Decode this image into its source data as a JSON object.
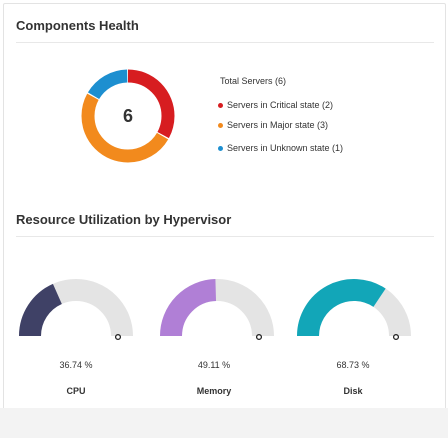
{
  "colors": {
    "critical": "#d71d20",
    "major": "#f28a1d",
    "unknown": "#1d8fd0",
    "gauge_cpu": "#3f4166",
    "gauge_memory": "#b07fd6",
    "gauge_disk": "#12a6b8",
    "gauge_track": "#e4e4e4"
  },
  "components_health": {
    "title": "Components Health",
    "total": "6",
    "legend_title": "Total Servers (6)",
    "legend_items": [
      {
        "label": "Servers in Critical state (2)",
        "value": 2,
        "color": "#d71d20"
      },
      {
        "label": "Servers in Major state (3)",
        "value": 3,
        "color": "#f28a1d"
      },
      {
        "label": "Servers in Unknown state (1)",
        "value": 1,
        "color": "#1d8fd0"
      }
    ]
  },
  "resource_utilization": {
    "title": "Resource Utilization by Hypervisor",
    "gauges": [
      {
        "name": "CPU",
        "percent_label": "36.74 %",
        "value": 36.74,
        "color": "#3f4166"
      },
      {
        "name": "Memory",
        "percent_label": "49.11 %",
        "value": 49.11,
        "color": "#b07fd6"
      },
      {
        "name": "Disk",
        "percent_label": "68.73 %",
        "value": 68.73,
        "color": "#12a6b8"
      }
    ]
  }
}
